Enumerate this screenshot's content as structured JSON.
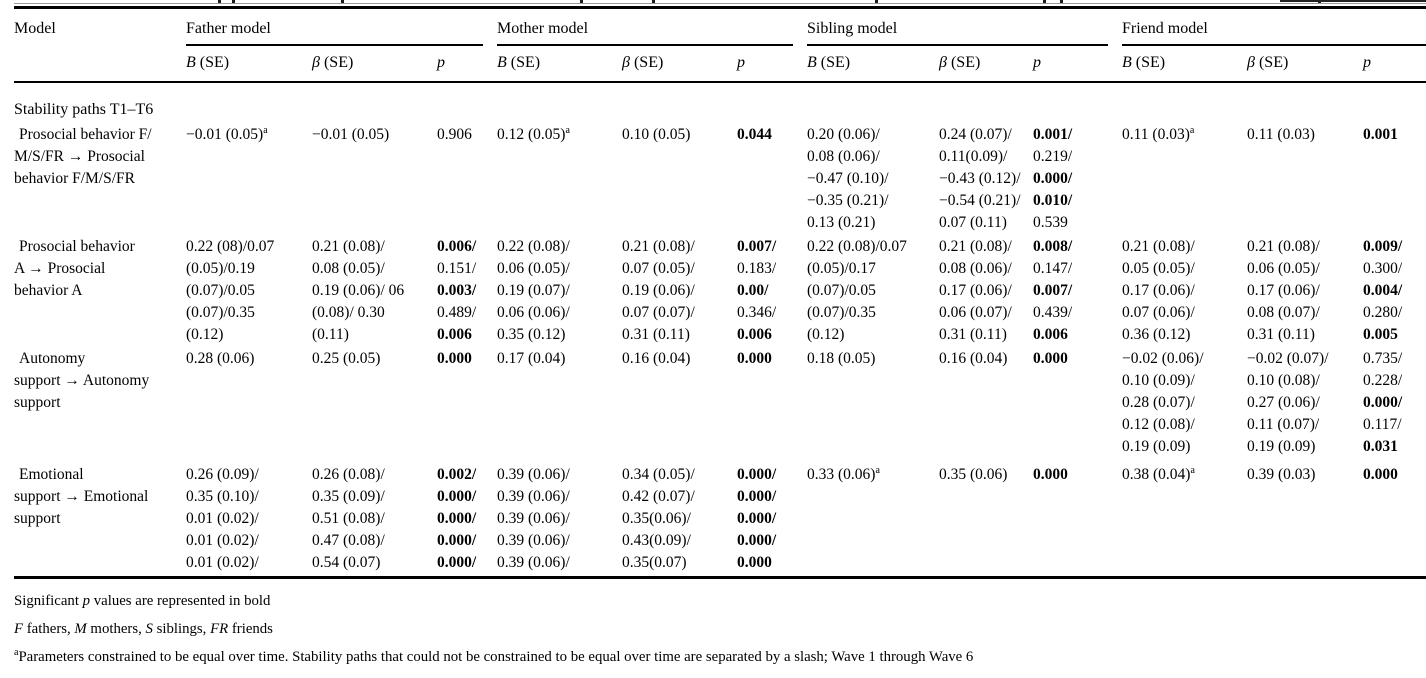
{
  "table": {
    "header": {
      "model_label": "Model",
      "groups": [
        "Father model",
        "Mother model",
        "Sibling model",
        "Friend model"
      ],
      "col_defs": [
        [
          [
            "B",
            1
          ],
          [
            " (SE)",
            0
          ]
        ],
        [
          [
            "β",
            1
          ],
          [
            " (SE)",
            0
          ]
        ],
        [
          [
            "p",
            1
          ]
        ]
      ]
    },
    "section_label": "Stability paths T1–T6",
    "rows": [
      {
        "label_lines": [
          "Prosocial behavior F/",
          "M/S/FR → Prosocial",
          "behavior F/M/S/FR"
        ],
        "cells": [
          [
            [
              "−0.01 (0.05)ᵃ",
              0
            ]
          ],
          [
            [
              "−0.01 (0.05)",
              0
            ]
          ],
          [
            [
              "0.906",
              0
            ]
          ],
          [
            [
              "0.12 (0.05)ᵃ",
              0
            ]
          ],
          [
            [
              "0.10 (0.05)",
              0
            ]
          ],
          [
            [
              "0.044",
              1
            ]
          ],
          [
            [
              "0.20 (0.06)/",
              0
            ],
            [
              "0.08 (0.06)/",
              0
            ],
            [
              "−0.47 (0.10)/",
              0
            ],
            [
              "−0.35 (0.21)/",
              0
            ],
            [
              "0.13 (0.21)",
              0
            ]
          ],
          [
            [
              "0.24 (0.07)/",
              0
            ],
            [
              "0.11(0.09)/",
              0
            ],
            [
              "−0.43 (0.12)/",
              0
            ],
            [
              "−0.54 (0.21)/",
              0
            ],
            [
              "0.07 (0.11)",
              0
            ]
          ],
          [
            [
              "0.001/",
              1
            ],
            [
              "0.219/",
              0
            ],
            [
              "0.000/",
              1
            ],
            [
              "0.010/",
              1
            ],
            [
              "0.539",
              0
            ]
          ],
          [
            [
              "0.11 (0.03)ᵃ",
              0
            ]
          ],
          [
            [
              "0.11 (0.03)",
              0
            ]
          ],
          [
            [
              "0.001",
              1
            ]
          ]
        ]
      },
      {
        "label_lines": [
          "Prosocial behavior",
          "A → Prosocial",
          "behavior A"
        ],
        "cells": [
          [
            [
              "0.22 (08)/0.07",
              0
            ],
            [
              "(0.05)/0.19",
              0
            ],
            [
              "(0.07)/0.05",
              0
            ],
            [
              "(0.07)/0.35",
              0
            ],
            [
              "(0.12)",
              0
            ]
          ],
          [
            [
              "0.21 (0.08)/",
              0
            ],
            [
              "0.08 (0.05)/",
              0
            ],
            [
              "0.19 (0.06)/ 06",
              0
            ],
            [
              "(0.08)/ 0.30",
              0
            ],
            [
              "(0.11)",
              0
            ]
          ],
          [
            [
              "0.006/",
              1
            ],
            [
              "0.151/",
              0
            ],
            [
              "0.003/",
              1
            ],
            [
              "0.489/",
              0
            ],
            [
              "0.006",
              1
            ]
          ],
          [
            [
              "0.22 (0.08)/",
              0
            ],
            [
              "0.06 (0.05)/",
              0
            ],
            [
              "0.19 (0.07)/",
              0
            ],
            [
              "0.06 (0.06)/",
              0
            ],
            [
              "0.35 (0.12)",
              0
            ]
          ],
          [
            [
              "0.21 (0.08)/",
              0
            ],
            [
              "0.07 (0.05)/",
              0
            ],
            [
              "0.19 (0.06)/",
              0
            ],
            [
              "0.07 (0.07)/",
              0
            ],
            [
              "0.31 (0.11)",
              0
            ]
          ],
          [
            [
              "0.007/",
              1
            ],
            [
              "0.183/",
              0
            ],
            [
              "0.00/",
              1
            ],
            [
              "0.346/",
              0
            ],
            [
              "0.006",
              1
            ]
          ],
          [
            [
              "0.22 (0.08)/0.07",
              0
            ],
            [
              "(0.05)/0.17",
              0
            ],
            [
              "(0.07)/0.05",
              0
            ],
            [
              "(0.07)/0.35",
              0
            ],
            [
              "(0.12)",
              0
            ]
          ],
          [
            [
              "0.21 (0.08)/",
              0
            ],
            [
              "0.08 (0.06)/",
              0
            ],
            [
              "0.17 (0.06)/",
              0
            ],
            [
              "0.06 (0.07)/",
              0
            ],
            [
              "0.31 (0.11)",
              0
            ]
          ],
          [
            [
              "0.008/",
              1
            ],
            [
              "0.147/",
              0
            ],
            [
              "0.007/",
              1
            ],
            [
              "0.439/",
              0
            ],
            [
              "0.006",
              1
            ]
          ],
          [
            [
              "0.21 (0.08)/",
              0
            ],
            [
              "0.05 (0.05)/",
              0
            ],
            [
              "0.17 (0.06)/",
              0
            ],
            [
              "0.07 (0.06)/",
              0
            ],
            [
              "0.36 (0.12)",
              0
            ]
          ],
          [
            [
              "0.21 (0.08)/",
              0
            ],
            [
              "0.06 (0.05)/",
              0
            ],
            [
              "0.17 (0.06)/",
              0
            ],
            [
              "0.08 (0.07)/",
              0
            ],
            [
              "0.31 (0.11)",
              0
            ]
          ],
          [
            [
              "0.009/",
              1
            ],
            [
              "0.300/",
              0
            ],
            [
              "0.004/",
              1
            ],
            [
              "0.280/",
              0
            ],
            [
              "0.005",
              1
            ]
          ]
        ]
      },
      {
        "label_lines": [
          "Autonomy",
          "support → Autonomy",
          "support"
        ],
        "cells": [
          [
            [
              "0.28 (0.06)",
              0
            ]
          ],
          [
            [
              "0.25 (0.05)",
              0
            ]
          ],
          [
            [
              "0.000",
              1
            ]
          ],
          [
            [
              "0.17 (0.04)",
              0
            ]
          ],
          [
            [
              "0.16 (0.04)",
              0
            ]
          ],
          [
            [
              "0.000",
              1
            ]
          ],
          [
            [
              "0.18 (0.05)",
              0
            ]
          ],
          [
            [
              "0.16 (0.04)",
              0
            ]
          ],
          [
            [
              "0.000",
              1
            ]
          ],
          [
            [
              "−0.02 (0.06)/",
              0
            ],
            [
              "0.10 (0.09)/",
              0
            ],
            [
              "0.28 (0.07)/",
              0
            ],
            [
              "0.12 (0.08)/",
              0
            ],
            [
              "0.19 (0.09)",
              0
            ]
          ],
          [
            [
              "−0.02 (0.07)/",
              0
            ],
            [
              "0.10 (0.08)/",
              0
            ],
            [
              "0.27 (0.06)/",
              0
            ],
            [
              "0.11 (0.07)/",
              0
            ],
            [
              "0.19 (0.09)",
              0
            ]
          ],
          [
            [
              "0.735/",
              0
            ],
            [
              "0.228/",
              0
            ],
            [
              "0.000/",
              1
            ],
            [
              "0.117/",
              0
            ],
            [
              "0.031",
              1
            ]
          ]
        ]
      },
      {
        "label_lines": [
          "Emotional",
          "support → Emotional",
          "support"
        ],
        "cells": [
          [
            [
              "0.26 (0.09)/",
              0
            ],
            [
              "0.35 (0.10)/",
              0
            ],
            [
              "0.01 (0.02)/",
              0
            ],
            [
              "0.01 (0.02)/",
              0
            ],
            [
              "0.01 (0.02)/",
              0
            ]
          ],
          [
            [
              "0.26 (0.08)/",
              0
            ],
            [
              "0.35 (0.09)/",
              0
            ],
            [
              "0.51 (0.08)/",
              0
            ],
            [
              "0.47 (0.08)/",
              0
            ],
            [
              "0.54 (0.07)",
              0
            ]
          ],
          [
            [
              "0.002/",
              1
            ],
            [
              "0.000/",
              1
            ],
            [
              "0.000/",
              1
            ],
            [
              "0.000/",
              1
            ],
            [
              "0.000/",
              1
            ]
          ],
          [
            [
              "0.39 (0.06)/",
              0
            ],
            [
              "0.39 (0.06)/",
              0
            ],
            [
              "0.39 (0.06)/",
              0
            ],
            [
              "0.39 (0.06)/",
              0
            ],
            [
              "0.39 (0.06)/",
              0
            ]
          ],
          [
            [
              "0.34 (0.05)/",
              0
            ],
            [
              "0.42 (0.07)/",
              0
            ],
            [
              "0.35(0.06)/",
              0
            ],
            [
              "0.43(0.09)/",
              0
            ],
            [
              "0.35(0.07)",
              0
            ]
          ],
          [
            [
              "0.000/",
              1
            ],
            [
              "0.000/",
              1
            ],
            [
              "0.000/",
              1
            ],
            [
              "0.000/",
              1
            ],
            [
              "0.000",
              1
            ]
          ],
          [
            [
              "0.33 (0.06)ᵃ",
              0
            ]
          ],
          [
            [
              "0.35 (0.06)",
              0
            ]
          ],
          [
            [
              "0.000",
              1
            ]
          ],
          [
            [
              "0.38 (0.04)ᵃ",
              0
            ]
          ],
          [
            [
              "0.39 (0.03)",
              0
            ]
          ],
          [
            [
              "0.000",
              1
            ]
          ]
        ]
      }
    ],
    "footnotes": [
      [
        [
          "Significant ",
          0
        ],
        [
          "p",
          1
        ],
        [
          " values are represented in bold",
          0
        ]
      ],
      [
        [
          "F",
          1
        ],
        [
          " fathers, ",
          0
        ],
        [
          "M",
          1
        ],
        [
          " mothers, ",
          0
        ],
        [
          "S",
          1
        ],
        [
          " siblings, ",
          0
        ],
        [
          "FR",
          1
        ],
        [
          " friends",
          0
        ]
      ],
      [
        [
          "a",
          2
        ],
        [
          "Parameters constrained to be equal over time. Stability paths that could not be constrained to be equal over time are separated by a slash; Wave 1 through Wave 6",
          0
        ]
      ]
    ]
  }
}
